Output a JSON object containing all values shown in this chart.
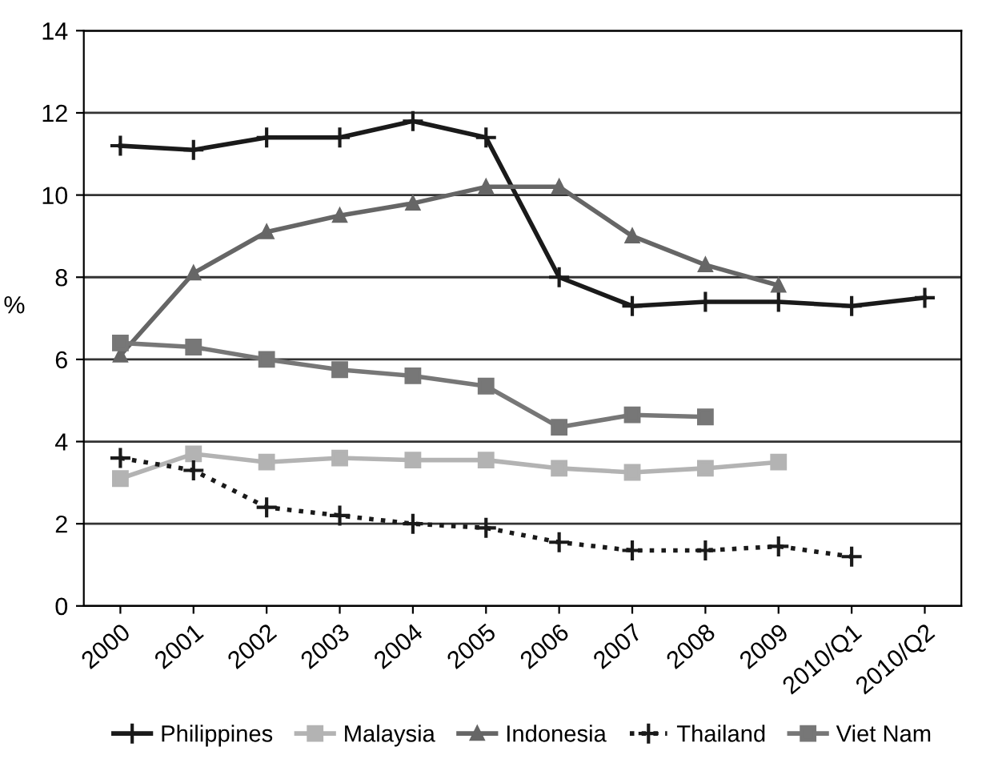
{
  "chart_data": {
    "type": "line",
    "ylabel": "%",
    "categories": [
      "2000",
      "2001",
      "2002",
      "2003",
      "2004",
      "2005",
      "2006",
      "2007",
      "2008",
      "2009",
      "2010/Q1",
      "2010/Q2"
    ],
    "ylim": [
      0,
      14
    ],
    "yticks": [
      0,
      2,
      4,
      6,
      8,
      10,
      12,
      14
    ],
    "grid": "y",
    "legend": "bottom",
    "series": [
      {
        "name": "Philippines",
        "color": "#1a1a1a",
        "marker": "cross",
        "line_style": "solid",
        "values": [
          11.2,
          11.1,
          11.4,
          11.4,
          11.8,
          11.4,
          8.0,
          7.3,
          7.4,
          7.4,
          7.3,
          7.5
        ]
      },
      {
        "name": "Malaysia",
        "color": "#b3b3b3",
        "marker": "square",
        "line_style": "solid",
        "values": [
          3.1,
          3.7,
          3.5,
          3.6,
          3.55,
          3.55,
          3.35,
          3.25,
          3.35,
          3.5,
          null,
          null
        ]
      },
      {
        "name": "Indonesia",
        "color": "#666666",
        "marker": "triangle",
        "line_style": "solid",
        "values": [
          6.1,
          8.1,
          9.1,
          9.5,
          9.8,
          10.2,
          10.2,
          9.0,
          8.3,
          7.8,
          null,
          null
        ]
      },
      {
        "name": "Thailand",
        "color": "#1a1a1a",
        "marker": "cross",
        "line_style": "dotted",
        "values": [
          3.6,
          3.3,
          2.4,
          2.2,
          2.0,
          1.9,
          1.55,
          1.35,
          1.35,
          1.45,
          1.2,
          null
        ]
      },
      {
        "name": "Viet Nam",
        "color": "#777777",
        "marker": "square",
        "line_style": "solid",
        "values": [
          6.4,
          6.3,
          6.0,
          5.75,
          5.6,
          5.35,
          4.35,
          4.65,
          4.6,
          null,
          null,
          null
        ]
      }
    ]
  }
}
